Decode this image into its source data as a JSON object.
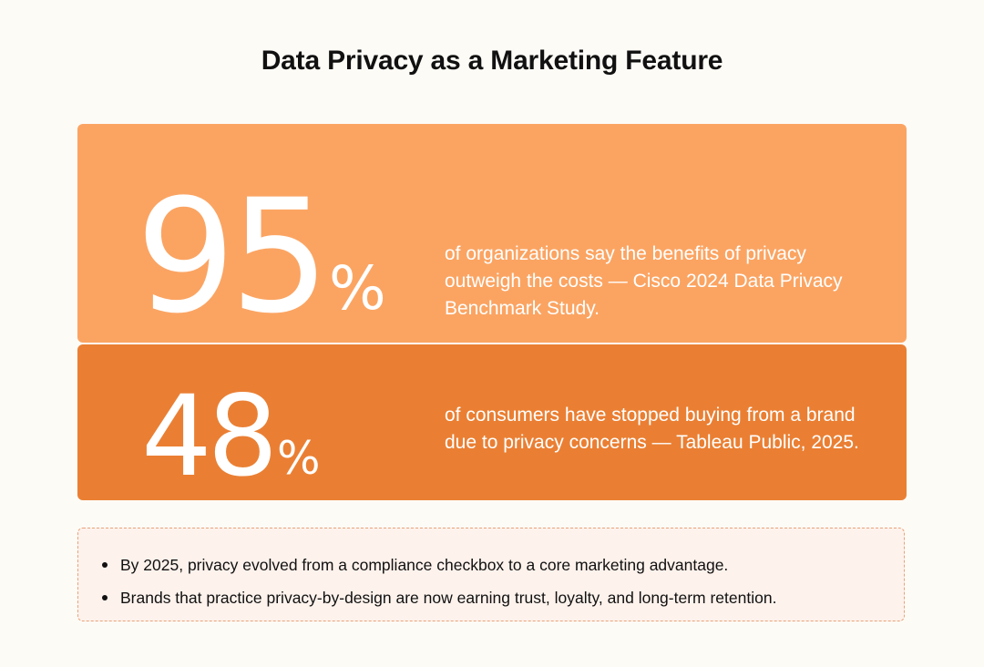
{
  "title": "Data Privacy as a Marketing Feature",
  "colors": {
    "background": "#fdfbf6",
    "card_light": "#fba462",
    "card_dark": "#ea7f33",
    "notes_bg": "#fdf2ec",
    "notes_border": "#e8a37a"
  },
  "stats": [
    {
      "number": "95",
      "percent_sign": "%",
      "description": "of organizations say the benefits of privacy outweigh the costs — Cisco 2024 Data Privacy Benchmark Study."
    },
    {
      "number": "48",
      "percent_sign": "%",
      "description": "of consumers have stopped buying from a brand due to privacy concerns — Tableau Public, 2025."
    }
  ],
  "notes": [
    "By 2025, privacy evolved from a compliance checkbox to a core marketing advantage.",
    "Brands that practice privacy-by-design are now earning trust, loyalty, and long-term retention."
  ]
}
